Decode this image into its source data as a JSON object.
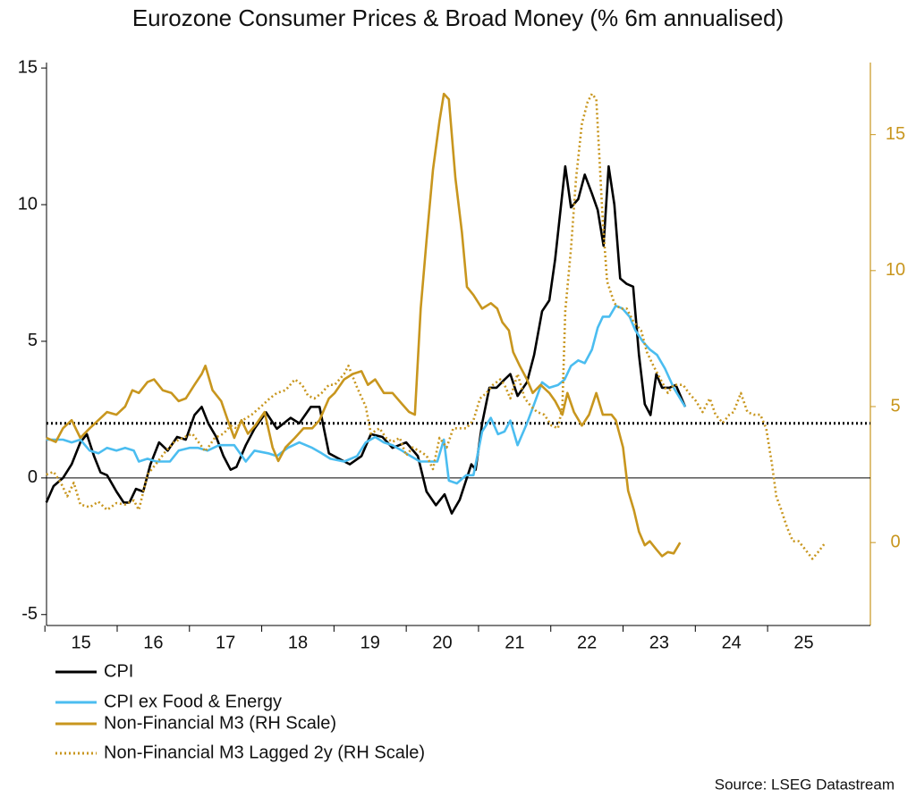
{
  "chart_data": {
    "type": "line",
    "title": "Eurozone Consumer Prices & Broad Money (% 6m annualised)",
    "source": "Source: LSEG Datastream",
    "xlim": [
      2015,
      2026.4
    ],
    "xticks": [
      {
        "value": 2015,
        "label": "15"
      },
      {
        "value": 2016,
        "label": "16"
      },
      {
        "value": 2017,
        "label": "17"
      },
      {
        "value": 2018,
        "label": "18"
      },
      {
        "value": 2019,
        "label": "19"
      },
      {
        "value": 2020,
        "label": "20"
      },
      {
        "value": 2021,
        "label": "21"
      },
      {
        "value": 2022,
        "label": "22"
      },
      {
        "value": 2023,
        "label": "23"
      },
      {
        "value": 2024,
        "label": "24"
      },
      {
        "value": 2025,
        "label": "25"
      }
    ],
    "ylim": [
      -5.4,
      15.2
    ],
    "yticks": [
      -5,
      0,
      5,
      10,
      15
    ],
    "y2lim": [
      -3.05,
      17.65
    ],
    "y2ticks": [
      0,
      5,
      10,
      15
    ],
    "y2color": "#c8961e",
    "hline": 2,
    "series": [
      {
        "name": "CPI",
        "color": "#000000",
        "dash": false,
        "x": [
          2015.02,
          2015.12,
          2015.25,
          2015.37,
          2015.49,
          2015.58,
          2015.68,
          2015.77,
          2015.86,
          2015.99,
          2016.09,
          2016.17,
          2016.26,
          2016.36,
          2016.46,
          2016.58,
          2016.7,
          2016.83,
          2016.95,
          2017.07,
          2017.17,
          2017.26,
          2017.37,
          2017.47,
          2017.57,
          2017.65,
          2017.78,
          2017.9,
          2018.06,
          2018.21,
          2018.4,
          2018.52,
          2018.68,
          2018.8,
          2018.93,
          2019.07,
          2019.22,
          2019.38,
          2019.51,
          2019.67,
          2019.81,
          2020.0,
          2020.16,
          2020.28,
          2020.41,
          2020.53,
          2020.63,
          2020.74,
          2020.9,
          2020.96,
          2021.05,
          2021.15,
          2021.25,
          2021.36,
          2021.44,
          2021.54,
          2021.67,
          2021.77,
          2021.88,
          2021.98,
          2022.06,
          2022.2,
          2022.28,
          2022.38,
          2022.47,
          2022.57,
          2022.65,
          2022.73,
          2022.8,
          2022.88,
          2022.96,
          2023.05,
          2023.14,
          2023.22,
          2023.3,
          2023.38,
          2023.46,
          2023.54,
          2023.64,
          2023.73,
          2023.86
        ],
        "values": [
          -0.9,
          -0.3,
          0,
          0.5,
          1.3,
          1.6,
          0.8,
          0.2,
          0.1,
          -0.5,
          -0.9,
          -0.9,
          -0.4,
          -0.5,
          0.5,
          1.3,
          1.0,
          1.5,
          1.4,
          2.3,
          2.6,
          2.0,
          1.5,
          0.8,
          0.3,
          0.4,
          1.2,
          1.8,
          2.4,
          1.8,
          2.2,
          2.0,
          2.6,
          2.6,
          0.9,
          0.7,
          0.5,
          0.8,
          1.6,
          1.5,
          1.1,
          1.3,
          0.8,
          -0.5,
          -1.0,
          -0.6,
          -1.3,
          -0.8,
          0.5,
          0.3,
          2.0,
          3.3,
          3.3,
          3.6,
          3.8,
          3.0,
          3.5,
          4.5,
          6.1,
          6.5,
          8.0,
          11.4,
          9.9,
          10.2,
          11.1,
          10.4,
          9.8,
          8.5,
          11.4,
          10.0,
          7.3,
          7.1,
          7.0,
          4.5,
          2.7,
          2.3,
          3.8,
          3.3,
          3.3,
          3.4,
          2.6
        ]
      },
      {
        "name": "CPI ex Food & Energy",
        "color": "#4bbdf0",
        "dash": false,
        "x": [
          2015.02,
          2015.25,
          2015.37,
          2015.49,
          2015.62,
          2015.74,
          2015.86,
          2015.99,
          2016.11,
          2016.23,
          2016.3,
          2016.42,
          2016.54,
          2016.73,
          2016.85,
          2017.0,
          2017.12,
          2017.25,
          2017.41,
          2017.62,
          2017.78,
          2017.9,
          2018.09,
          2018.21,
          2018.36,
          2018.52,
          2018.7,
          2018.83,
          2018.95,
          2019.14,
          2019.32,
          2019.44,
          2019.57,
          2019.69,
          2019.81,
          2019.94,
          2020.06,
          2020.19,
          2020.31,
          2020.43,
          2020.52,
          2020.59,
          2020.7,
          2020.83,
          2020.93,
          2021.05,
          2021.17,
          2021.27,
          2021.36,
          2021.44,
          2021.54,
          2021.67,
          2021.77,
          2021.88,
          2021.98,
          2022.1,
          2022.19,
          2022.28,
          2022.38,
          2022.47,
          2022.57,
          2022.65,
          2022.72,
          2022.81,
          2022.9,
          2022.99,
          2023.09,
          2023.17,
          2023.27,
          2023.37,
          2023.47,
          2023.58,
          2023.7,
          2023.86
        ],
        "values": [
          1.4,
          1.4,
          1.3,
          1.4,
          1.0,
          0.9,
          1.1,
          1.0,
          1.1,
          1.0,
          0.6,
          0.7,
          0.6,
          0.6,
          1.0,
          1.1,
          1.1,
          1.0,
          1.2,
          1.2,
          0.6,
          1.0,
          0.9,
          0.8,
          1.1,
          1.3,
          1.1,
          0.9,
          0.7,
          0.6,
          0.8,
          1.3,
          1.5,
          1.3,
          1.2,
          1.0,
          0.8,
          0.6,
          0.6,
          0.6,
          1.4,
          -0.1,
          -0.2,
          0.1,
          0.1,
          1.7,
          2.2,
          1.6,
          1.7,
          2.1,
          1.2,
          2.0,
          2.7,
          3.5,
          3.3,
          3.4,
          3.6,
          4.1,
          4.3,
          4.2,
          4.7,
          5.5,
          5.9,
          5.9,
          6.3,
          6.2,
          5.9,
          5.4,
          5.0,
          4.7,
          4.5,
          4.0,
          3.3,
          2.6
        ]
      },
      {
        "name": "Non-Financial M3 (RH Scale)",
        "color": "#c8961e",
        "dash": false,
        "axis": "y2",
        "x": [
          2015.02,
          2015.15,
          2015.25,
          2015.37,
          2015.49,
          2015.62,
          2015.74,
          2015.86,
          2015.99,
          2016.11,
          2016.21,
          2016.3,
          2016.42,
          2016.51,
          2016.63,
          2016.75,
          2016.85,
          2016.95,
          2017.07,
          2017.17,
          2017.22,
          2017.32,
          2017.44,
          2017.53,
          2017.62,
          2017.72,
          2017.81,
          2017.91,
          2018.04,
          2018.15,
          2018.23,
          2018.33,
          2018.46,
          2018.58,
          2018.7,
          2018.8,
          2018.93,
          2019.01,
          2019.14,
          2019.26,
          2019.38,
          2019.47,
          2019.57,
          2019.69,
          2019.81,
          2019.94,
          2020.04,
          2020.12,
          2020.2,
          2020.28,
          2020.37,
          2020.46,
          2020.52,
          2020.59,
          2020.68,
          2020.77,
          2020.84,
          2020.93,
          2021.05,
          2021.17,
          2021.26,
          2021.33,
          2021.42,
          2021.48,
          2021.57,
          2021.67,
          2021.75,
          2021.86,
          2021.98,
          2022.06,
          2022.16,
          2022.23,
          2022.32,
          2022.43,
          2022.53,
          2022.63,
          2022.72,
          2022.84,
          2022.9,
          2023.0,
          2023.07,
          2023.15,
          2023.22,
          2023.3,
          2023.37,
          2023.46,
          2023.54,
          2023.62,
          2023.7,
          2023.79
        ],
        "values": [
          3.85,
          3.7,
          4.2,
          4.5,
          3.85,
          4.2,
          4.5,
          4.8,
          4.7,
          5.0,
          5.6,
          5.5,
          5.9,
          6.0,
          5.6,
          5.5,
          5.2,
          5.3,
          5.8,
          6.2,
          6.5,
          5.6,
          5.2,
          4.5,
          3.85,
          4.5,
          4.0,
          4.3,
          4.8,
          3.5,
          3.0,
          3.5,
          3.85,
          4.2,
          4.2,
          4.5,
          5.3,
          5.5,
          6.0,
          6.2,
          6.3,
          5.8,
          6.0,
          5.5,
          5.5,
          5.1,
          4.8,
          4.7,
          8.6,
          11.1,
          13.7,
          15.5,
          16.5,
          16.3,
          13.4,
          11.4,
          9.4,
          9.1,
          8.6,
          8.8,
          8.6,
          8.1,
          7.8,
          7.0,
          6.5,
          6.0,
          5.5,
          5.8,
          5.5,
          5.2,
          4.7,
          5.5,
          4.8,
          4.3,
          4.7,
          5.5,
          4.7,
          4.7,
          4.5,
          3.5,
          1.9,
          1.2,
          0.4,
          -0.1,
          0.05,
          -0.25,
          -0.5,
          -0.35,
          -0.4,
          0
        ]
      },
      {
        "name": "Non-Financial M3 Lagged 2y (RH Scale)",
        "color": "#c8961e",
        "dash": true,
        "axis": "y2",
        "x": [
          2015.02,
          2015.12,
          2015.22,
          2015.31,
          2015.4,
          2015.49,
          2015.62,
          2015.74,
          2015.86,
          2015.99,
          2016.11,
          2016.23,
          2016.3,
          2016.42,
          2016.54,
          2016.67,
          2016.79,
          2016.91,
          2017.04,
          2017.22,
          2017.35,
          2017.47,
          2017.57,
          2017.65,
          2017.74,
          2017.86,
          2017.99,
          2018.11,
          2018.21,
          2018.33,
          2018.46,
          2018.56,
          2018.64,
          2018.73,
          2018.83,
          2018.93,
          2019.01,
          2019.14,
          2019.2,
          2019.32,
          2019.44,
          2019.51,
          2019.63,
          2019.72,
          2019.81,
          2019.91,
          2020.0,
          2020.09,
          2020.19,
          2020.28,
          2020.37,
          2020.46,
          2020.56,
          2020.65,
          2020.74,
          2020.83,
          2020.93,
          2021.02,
          2021.11,
          2021.2,
          2021.3,
          2021.36,
          2021.44,
          2021.54,
          2021.64,
          2021.73,
          2021.81,
          2021.91,
          2022.01,
          2022.1,
          2022.16,
          2022.2,
          2022.28,
          2022.35,
          2022.43,
          2022.51,
          2022.57,
          2022.63,
          2022.72,
          2022.78,
          2022.88,
          2022.96,
          2023.05,
          2023.15,
          2023.25,
          2023.33,
          2023.42,
          2023.52,
          2023.62,
          2023.7,
          2023.83,
          2023.91,
          2024.01,
          2024.1,
          2024.2,
          2024.28,
          2024.38,
          2024.47,
          2024.53,
          2024.63,
          2024.72,
          2024.81,
          2024.9,
          2024.98,
          2025.06,
          2025.12,
          2025.19,
          2025.27,
          2025.35,
          2025.43,
          2025.52,
          2025.62,
          2025.7,
          2025.8
        ],
        "values": [
          2.5,
          2.6,
          2.2,
          1.7,
          2.2,
          1.4,
          1.3,
          1.5,
          1.2,
          1.45,
          1.4,
          1.55,
          1.2,
          2.5,
          2.9,
          3.35,
          3.7,
          3.85,
          4.0,
          3.35,
          3.85,
          4.0,
          4.3,
          4.2,
          4.5,
          4.7,
          5.0,
          5.3,
          5.5,
          5.6,
          6.0,
          5.8,
          5.4,
          5.3,
          5.5,
          5.8,
          5.8,
          6.2,
          6.5,
          5.7,
          5.0,
          4.0,
          4.2,
          3.85,
          3.7,
          3.85,
          3.2,
          3.5,
          3.35,
          3.2,
          2.7,
          3.85,
          3.5,
          4.2,
          4.2,
          4.2,
          4.5,
          5.3,
          5.5,
          5.8,
          6.0,
          5.8,
          5.3,
          6.2,
          5.3,
          5.0,
          4.8,
          4.7,
          4.3,
          4.2,
          5.0,
          8.5,
          10.8,
          13.4,
          15.4,
          16.2,
          16.5,
          16.3,
          11.8,
          9.6,
          8.8,
          8.6,
          8.6,
          8.1,
          7.8,
          7.0,
          6.5,
          6.0,
          5.5,
          5.8,
          5.8,
          5.5,
          5.2,
          4.8,
          5.3,
          4.7,
          4.4,
          4.7,
          4.8,
          5.5,
          4.8,
          4.7,
          4.7,
          4.2,
          2.9,
          1.7,
          1.2,
          0.55,
          0.05,
          0.05,
          -0.25,
          -0.6,
          -0.35,
          0
        ]
      }
    ]
  }
}
